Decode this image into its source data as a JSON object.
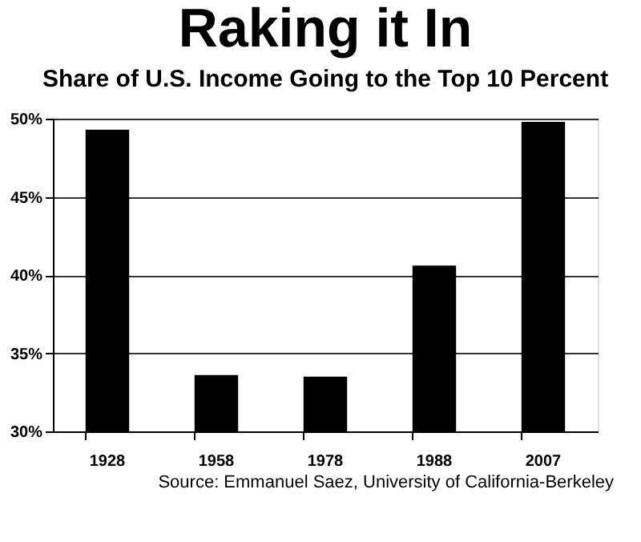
{
  "chart_data": {
    "type": "bar",
    "title": "Raking it In",
    "subtitle": "Share of U.S. Income Going to the Top 10 Percent",
    "categories": [
      "1928",
      "1958",
      "1978",
      "1988",
      "2007"
    ],
    "values": [
      49.3,
      33.6,
      33.5,
      40.6,
      49.8
    ],
    "color": "#000000",
    "ylim": [
      30,
      50
    ],
    "yticks": [
      {
        "value": 30,
        "label": "30%"
      },
      {
        "value": 35,
        "label": "35%"
      },
      {
        "value": 40,
        "label": "40%"
      },
      {
        "value": 45,
        "label": "45%"
      },
      {
        "value": 50,
        "label": "50%"
      }
    ],
    "grid": "y",
    "annotations": [
      "Source: Emmanuel Saez, University of California-Berkeley"
    ]
  }
}
